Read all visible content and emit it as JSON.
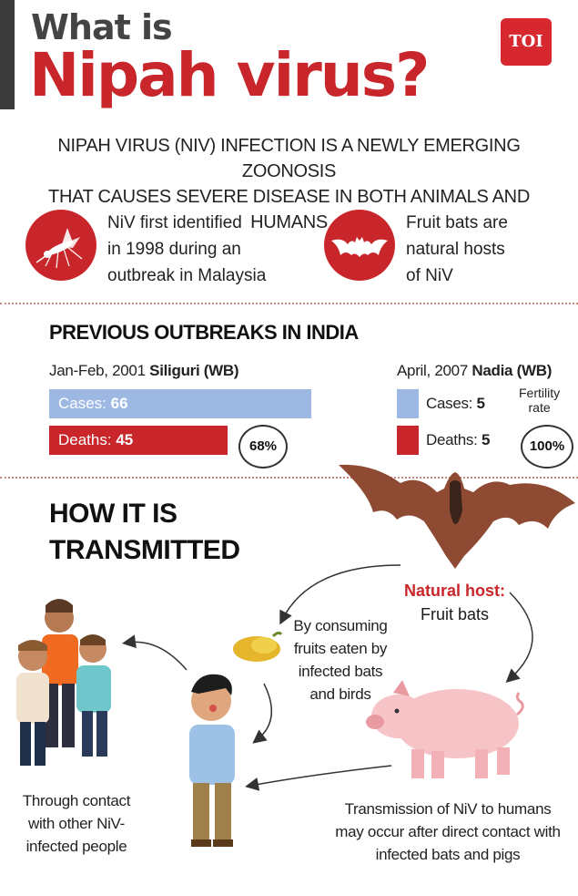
{
  "header": {
    "title_line1": "What is",
    "title_line2": "Nipah virus?",
    "logo_text": "TOI"
  },
  "intro": {
    "line1": "NIPAH VIRUS (NIV) INFECTION IS A NEWLY EMERGING ZOONOSIS",
    "line2": "THAT CAUSES SEVERE DISEASE IN BOTH ANIMALS AND HUMANS"
  },
  "facts": [
    {
      "icon": "mosquito-icon",
      "lines": [
        "NiV first identified",
        "in 1998 during an",
        "outbreak in Malaysia"
      ]
    },
    {
      "icon": "bat-icon",
      "lines": [
        "Fruit bats are",
        "natural hosts",
        "of NiV"
      ]
    }
  ],
  "outbreaks": {
    "heading": "PREVIOUS OUTBREAKS IN INDIA",
    "siliguri": {
      "date": "Jan-Feb, 2001",
      "place": "Siliguri (WB)",
      "cases_label": "Cases:",
      "cases": "66",
      "deaths_label": "Deaths:",
      "deaths": "45",
      "fatality": "68%"
    },
    "nadia": {
      "date": "April, 2007",
      "place": "Nadia (WB)",
      "cases_label": "Cases:",
      "cases": "5",
      "deaths_label": "Deaths:",
      "deaths": "5",
      "rate_line1": "Fertility",
      "rate_line2": "rate",
      "fatality": "100%"
    },
    "colors": {
      "cases": "#9db8e3",
      "deaths": "#c8262a"
    }
  },
  "transmission": {
    "heading_line1": "HOW IT IS",
    "heading_line2": "TRANSMITTED",
    "host_label": "Natural host:",
    "host_value": "Fruit bats",
    "fruit_caption": [
      "By consuming",
      "fruits eaten by",
      "infected bats",
      "and birds"
    ],
    "people_caption": [
      "Through contact",
      "with other NiV-",
      "infected people"
    ],
    "pig_caption": [
      "Transmission of NiV to humans",
      "may occur after direct contact with",
      "infected bats and pigs"
    ]
  },
  "accent_color": "#c8262a"
}
